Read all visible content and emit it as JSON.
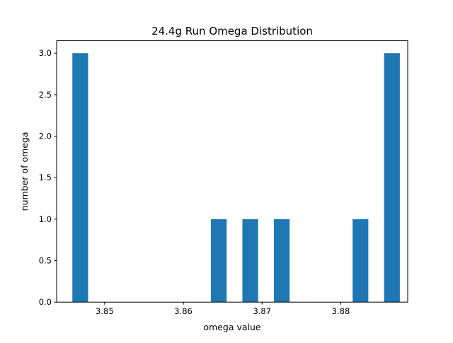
{
  "chart_data": {
    "type": "bar",
    "title": "24.4g Run Omega Distribution",
    "xlabel": "omega value",
    "ylabel": "number of omega",
    "xlim": [
      3.8439,
      3.8885
    ],
    "ylim": [
      0,
      3.15
    ],
    "x_ticks": [
      3.85,
      3.86,
      3.87,
      3.88
    ],
    "x_tick_labels": [
      "3.85",
      "3.86",
      "3.87",
      "3.88"
    ],
    "y_ticks": [
      0.0,
      0.5,
      1.0,
      1.5,
      2.0,
      2.5,
      3.0
    ],
    "y_tick_labels": [
      "0.0",
      "0.5",
      "1.0",
      "1.5",
      "2.0",
      "2.5",
      "3.0"
    ],
    "bar_color": "#1f77b4",
    "grid": false,
    "bars": [
      {
        "x0": 3.8459,
        "x1": 3.8479,
        "value": 3
      },
      {
        "x0": 3.8635,
        "x1": 3.8655,
        "value": 1
      },
      {
        "x0": 3.8675,
        "x1": 3.8695,
        "value": 1
      },
      {
        "x0": 3.8715,
        "x1": 3.8735,
        "value": 1
      },
      {
        "x0": 3.8815,
        "x1": 3.8835,
        "value": 1
      },
      {
        "x0": 3.8855,
        "x1": 3.8875,
        "value": 3
      }
    ]
  }
}
